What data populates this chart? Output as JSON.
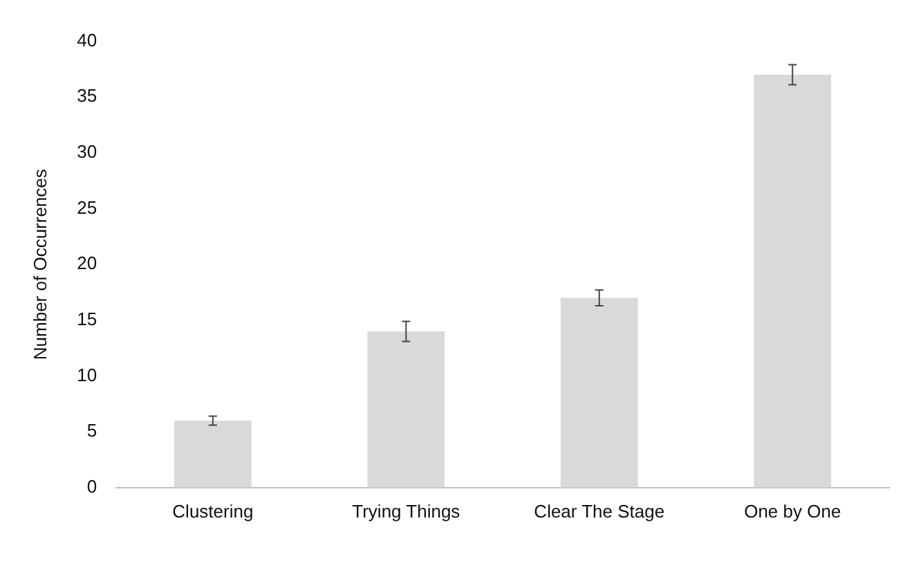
{
  "chart_data": {
    "type": "bar",
    "ylabel": "Number of Occurrences",
    "categories": [
      "Clustering",
      "Trying Things",
      "Clear The Stage",
      "One by One"
    ],
    "values": [
      6,
      14,
      17,
      37
    ],
    "errors": [
      0.4,
      0.9,
      0.7,
      0.9
    ],
    "color": "#d9d9d9",
    "ylim": [
      0,
      40
    ],
    "yticks": [
      0,
      5,
      10,
      15,
      20,
      25,
      30,
      35,
      40
    ],
    "grid": false,
    "legend": false
  }
}
